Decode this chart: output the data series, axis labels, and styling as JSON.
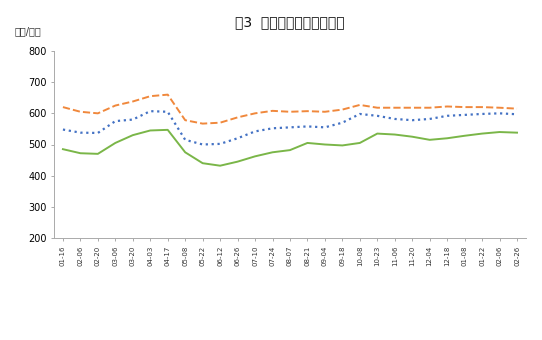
{
  "title": "图3  秦皇岛港煤炭价格情况",
  "ylabel": "（元/吨）",
  "xlabels": [
    "01-16",
    "02-06",
    "02-20",
    "03-06",
    "03-20",
    "04-03",
    "04-17",
    "05-08",
    "05-22",
    "06-12",
    "06-26",
    "07-10",
    "07-24",
    "08-07",
    "08-21",
    "09-04",
    "09-18",
    "10-08",
    "10-23",
    "11-06",
    "11-20",
    "12-04",
    "12-18",
    "01-08",
    "01-22",
    "02-06",
    "02-26"
  ],
  "series_5500": [
    620,
    605,
    600,
    625,
    638,
    655,
    660,
    578,
    567,
    570,
    587,
    600,
    608,
    605,
    607,
    605,
    612,
    627,
    618,
    618,
    618,
    618,
    622,
    620,
    620,
    618,
    615
  ],
  "series_5000": [
    548,
    538,
    537,
    575,
    580,
    607,
    605,
    515,
    500,
    502,
    520,
    542,
    552,
    555,
    558,
    555,
    570,
    598,
    592,
    582,
    578,
    582,
    592,
    595,
    598,
    600,
    597
  ],
  "series_4500": [
    485,
    472,
    470,
    505,
    530,
    545,
    547,
    475,
    440,
    432,
    445,
    462,
    475,
    482,
    505,
    500,
    497,
    505,
    535,
    532,
    525,
    515,
    520,
    528,
    535,
    540,
    538
  ],
  "color_5500": "#F0883C",
  "color_5000": "#4472C4",
  "color_4500": "#7AB648",
  "ylim": [
    200,
    800
  ],
  "yticks": [
    200,
    300,
    400,
    500,
    600,
    700,
    800
  ],
  "bg_color": "#FFFFFF",
  "fig_width": 5.42,
  "fig_height": 3.4,
  "dpi": 100
}
